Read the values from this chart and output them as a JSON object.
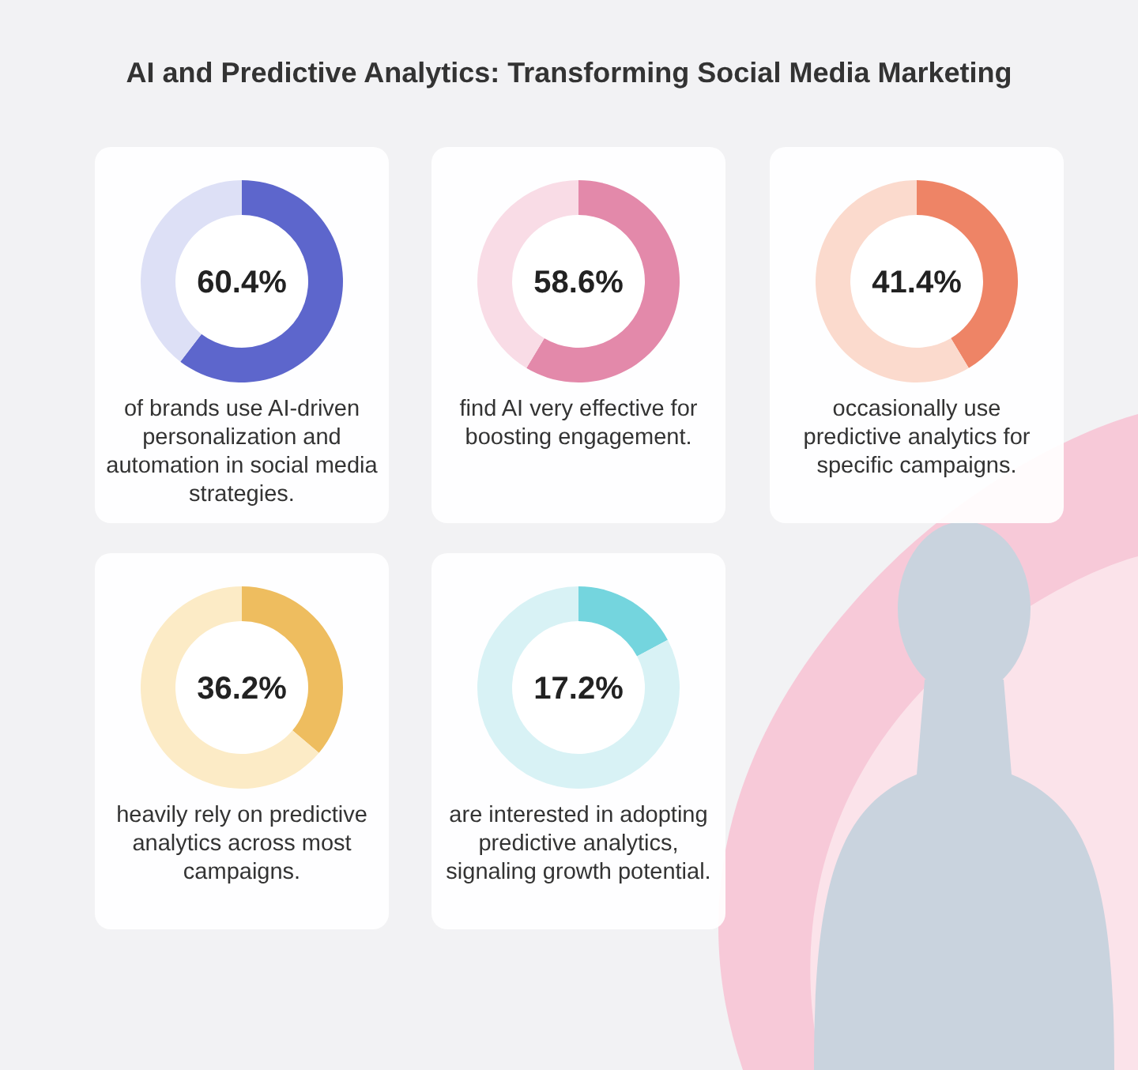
{
  "chart_data": [
    {
      "type": "donut",
      "title": "AI and Predictive Analytics: Transforming Social Media Marketing",
      "categories": [
        null,
        null
      ],
      "values": [
        60.4,
        39.6
      ],
      "colors": [
        "#5d66cc",
        "#dde0f6"
      ],
      "annotations": [
        "60.4%",
        "of brands use AI-driven personalization and automation in social media strategies."
      ]
    },
    {
      "type": "donut",
      "categories": [
        null,
        null
      ],
      "values": [
        58.6,
        41.4
      ],
      "colors": [
        "#e389aa",
        "#f9dce6"
      ],
      "annotations": [
        "58.6%",
        "find AI very effective for boosting engagement."
      ]
    },
    {
      "type": "donut",
      "categories": [
        null,
        null
      ],
      "values": [
        41.4,
        58.6
      ],
      "colors": [
        "#ee8466",
        "#fbdacd"
      ],
      "annotations": [
        "41.4%",
        "occasionally use predictive analytics for specific campaigns."
      ]
    },
    {
      "type": "donut",
      "categories": [
        null,
        null
      ],
      "values": [
        36.2,
        63.8
      ],
      "colors": [
        "#eebd5f",
        "#fcebc6"
      ],
      "annotations": [
        "36.2%",
        "heavily rely on predictive analytics across most campaigns."
      ]
    },
    {
      "type": "donut",
      "categories": [
        null,
        null
      ],
      "values": [
        17.2,
        82.8
      ],
      "colors": [
        "#74d5de",
        "#d8f2f5"
      ],
      "annotations": [
        "17.2%",
        "are interested in adopting predictive analytics, signaling growth potential."
      ]
    }
  ]
}
